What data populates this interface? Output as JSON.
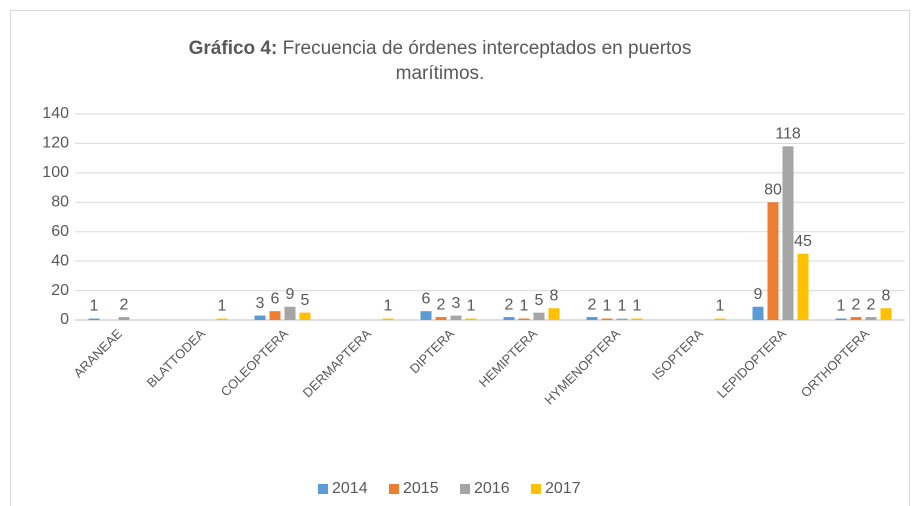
{
  "chart_data": {
    "type": "bar",
    "title": {
      "bold": "Gráfico 4:",
      "text": "Frecuencia de órdenes interceptados en puertos marítimos."
    },
    "categories": [
      "ARANEAE",
      "BLATTODEA",
      "COLEOPTERA",
      "DERMAPTERA",
      "DIPTERA",
      "HEMIPTERA",
      "HYMENOPTERA",
      "ISOPTERA",
      "LEPIDOPTERA",
      "ORTHOPTERA"
    ],
    "series": [
      {
        "name": "2014",
        "color": "#5b9bd5",
        "values": [
          1,
          null,
          3,
          null,
          6,
          2,
          2,
          null,
          9,
          1
        ]
      },
      {
        "name": "2015",
        "color": "#ed7d31",
        "values": [
          null,
          null,
          6,
          null,
          2,
          1,
          1,
          null,
          80,
          2
        ]
      },
      {
        "name": "2016",
        "color": "#a5a5a5",
        "values": [
          2,
          null,
          9,
          null,
          3,
          5,
          1,
          null,
          118,
          2
        ]
      },
      {
        "name": "2017",
        "color": "#ffc000",
        "values": [
          null,
          1,
          5,
          1,
          1,
          8,
          1,
          1,
          45,
          8
        ]
      }
    ],
    "ylim": [
      0,
      140
    ],
    "yticks": [
      0,
      20,
      40,
      60,
      80,
      100,
      120,
      140
    ],
    "grid": true,
    "legend": "bottom"
  }
}
